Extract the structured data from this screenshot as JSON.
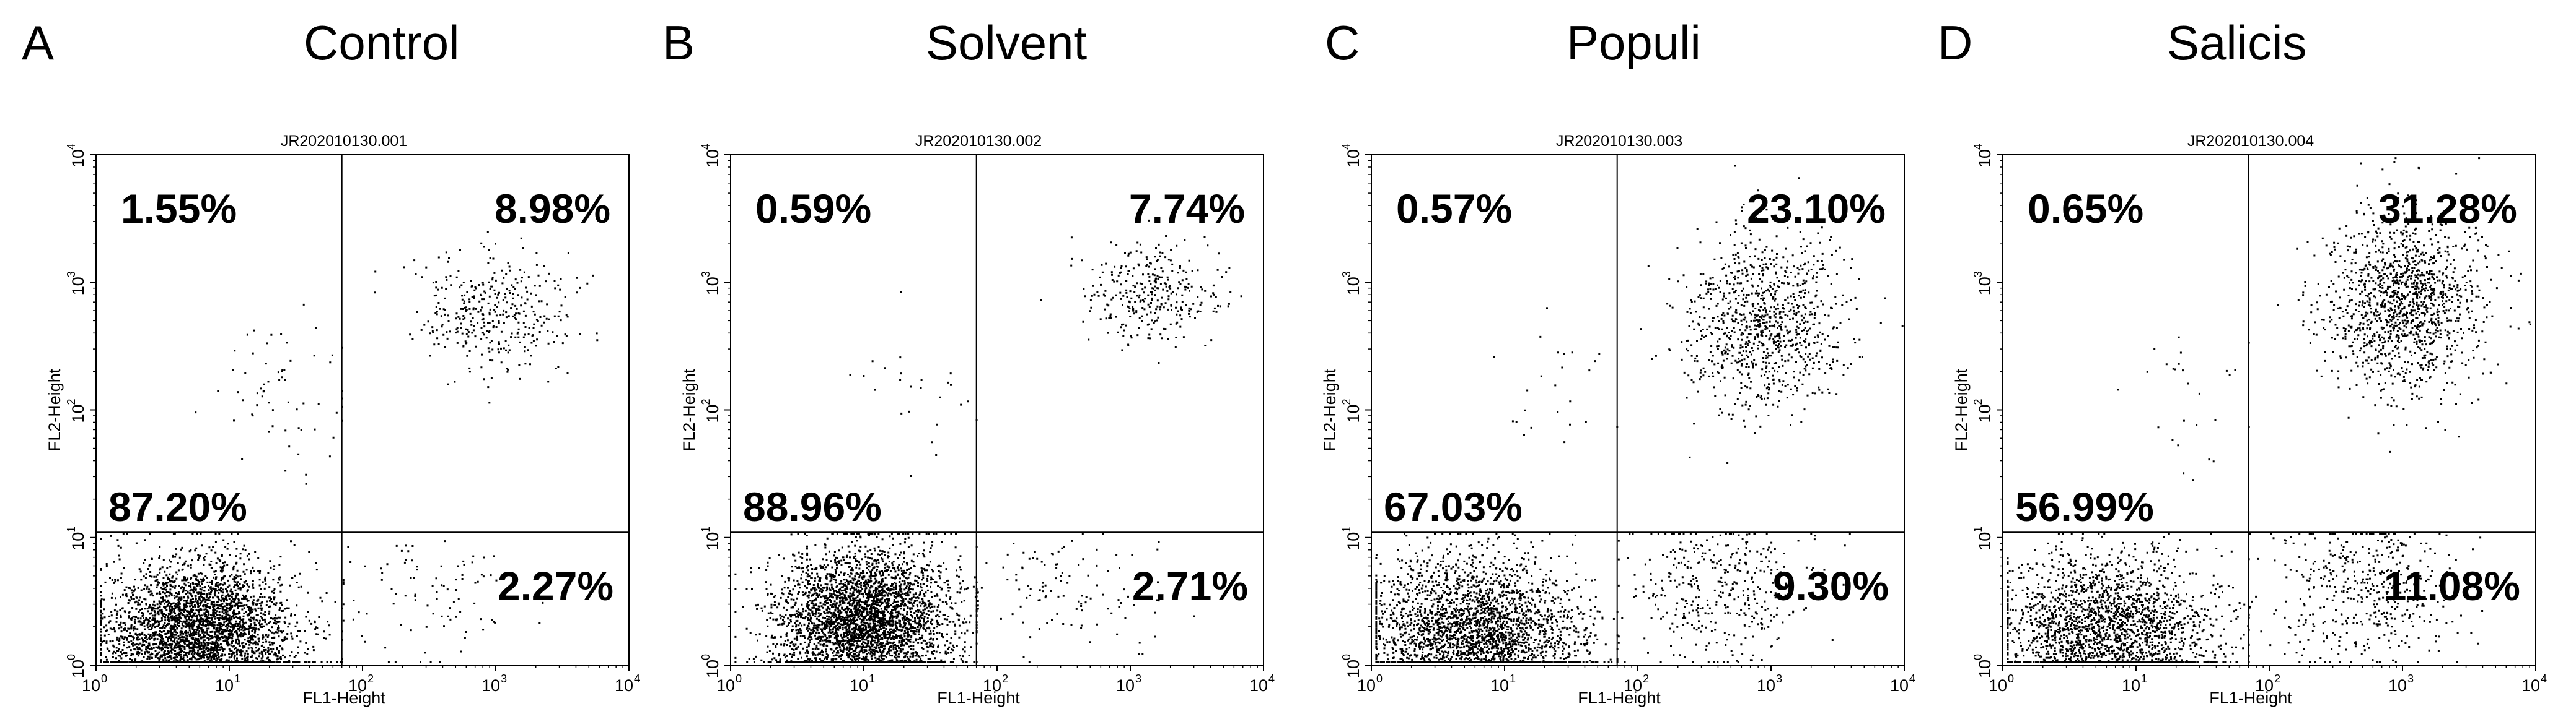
{
  "chart_data": [
    {
      "type": "scatter",
      "panel_letter": "A",
      "title": "Control",
      "sample_id": "JR202010130.001",
      "xlabel": "FL1-Height",
      "ylabel": "FL2-Height",
      "x_scale": "log",
      "y_scale": "log",
      "xlim": [
        1,
        10000
      ],
      "ylim": [
        1,
        10000
      ],
      "tick_base": "10",
      "tick_exps": [
        "0",
        "1",
        "2",
        "3",
        "4"
      ],
      "quadrant_gate": {
        "x": 70,
        "y": 11
      },
      "quadrants": {
        "upper_left": "1.55%",
        "upper_right": "8.98%",
        "lower_left": "87.20%",
        "lower_right": "2.27%"
      },
      "quadrant_fractions": {
        "upper_left": 0.0155,
        "upper_right": 0.0898,
        "lower_left": 0.872,
        "lower_right": 0.0227
      },
      "populations": [
        {
          "quadrant": "lower_left",
          "center": [
            6,
            1.8
          ],
          "spread": [
            0.35,
            0.28
          ]
        },
        {
          "quadrant": "upper_right",
          "center": [
            900,
            600
          ],
          "spread": [
            0.3,
            0.22
          ]
        },
        {
          "quadrant": "lower_right",
          "center": [
            300,
            4
          ],
          "spread": [
            0.35,
            0.25
          ]
        },
        {
          "quadrant": "upper_left",
          "center": [
            25,
            150
          ],
          "spread": [
            0.3,
            0.35
          ]
        }
      ]
    },
    {
      "type": "scatter",
      "panel_letter": "B",
      "title": "Solvent",
      "sample_id": "JR202010130.002",
      "xlabel": "FL1-Height",
      "ylabel": "FL2-Height",
      "x_scale": "log",
      "y_scale": "log",
      "xlim": [
        1,
        10000
      ],
      "ylim": [
        1,
        10000
      ],
      "tick_base": "10",
      "tick_exps": [
        "0",
        "1",
        "2",
        "3",
        "4"
      ],
      "quadrant_gate": {
        "x": 70,
        "y": 11
      },
      "quadrants": {
        "upper_left": "0.59%",
        "upper_right": "7.74%",
        "lower_left": "88.96%",
        "lower_right": "2.71%"
      },
      "quadrant_fractions": {
        "upper_left": 0.0059,
        "upper_right": 0.0774,
        "lower_left": 0.8896,
        "lower_right": 0.0271
      },
      "populations": [
        {
          "quadrant": "lower_left",
          "center": [
            10,
            2.2
          ],
          "spread": [
            0.33,
            0.28
          ]
        },
        {
          "quadrant": "upper_right",
          "center": [
            1400,
            800
          ],
          "spread": [
            0.25,
            0.2
          ]
        },
        {
          "quadrant": "lower_right",
          "center": [
            300,
            4
          ],
          "spread": [
            0.35,
            0.25
          ]
        },
        {
          "quadrant": "upper_left",
          "center": [
            25,
            150
          ],
          "spread": [
            0.3,
            0.35
          ]
        }
      ]
    },
    {
      "type": "scatter",
      "panel_letter": "C",
      "title": "Populi",
      "sample_id": "JR202010130.003",
      "xlabel": "FL1-Height",
      "ylabel": "FL2-Height",
      "x_scale": "log",
      "y_scale": "log",
      "xlim": [
        1,
        10000
      ],
      "ylim": [
        1,
        10000
      ],
      "tick_base": "10",
      "tick_exps": [
        "0",
        "1",
        "2",
        "3",
        "4"
      ],
      "quadrant_gate": {
        "x": 70,
        "y": 11
      },
      "quadrants": {
        "upper_left": "0.57%",
        "upper_right": "23.10%",
        "lower_left": "67.03%",
        "lower_right": "9.30%"
      },
      "quadrant_fractions": {
        "upper_left": 0.0057,
        "upper_right": 0.231,
        "lower_left": 0.6703,
        "lower_right": 0.093
      },
      "populations": [
        {
          "quadrant": "lower_left",
          "center": [
            6,
            1.8
          ],
          "spread": [
            0.4,
            0.3
          ]
        },
        {
          "quadrant": "upper_right",
          "center": [
            900,
            500
          ],
          "spread": [
            0.3,
            0.35
          ]
        },
        {
          "quadrant": "lower_right",
          "center": [
            400,
            4
          ],
          "spread": [
            0.35,
            0.3
          ]
        },
        {
          "quadrant": "upper_left",
          "center": [
            25,
            150
          ],
          "spread": [
            0.3,
            0.35
          ]
        }
      ]
    },
    {
      "type": "scatter",
      "panel_letter": "D",
      "title": "Salicis",
      "sample_id": "JR202010130.004",
      "xlabel": "FL1-Height",
      "ylabel": "FL2-Height",
      "x_scale": "log",
      "y_scale": "log",
      "xlim": [
        1,
        10000
      ],
      "ylim": [
        1,
        10000
      ],
      "tick_base": "10",
      "tick_exps": [
        "0",
        "1",
        "2",
        "3",
        "4"
      ],
      "quadrant_gate": {
        "x": 70,
        "y": 11
      },
      "quadrants": {
        "upper_left": "0.65%",
        "upper_right": "31.28%",
        "lower_left": "56.99%",
        "lower_right": "11.08%"
      },
      "quadrant_fractions": {
        "upper_left": 0.0065,
        "upper_right": 0.3128,
        "lower_left": 0.5699,
        "lower_right": 0.1108
      },
      "populations": [
        {
          "quadrant": "lower_left",
          "center": [
            6,
            1.8
          ],
          "spread": [
            0.4,
            0.3
          ]
        },
        {
          "quadrant": "upper_right",
          "center": [
            1000,
            700
          ],
          "spread": [
            0.3,
            0.35
          ]
        },
        {
          "quadrant": "lower_right",
          "center": [
            500,
            4
          ],
          "spread": [
            0.35,
            0.3
          ]
        },
        {
          "quadrant": "upper_left",
          "center": [
            25,
            150
          ],
          "spread": [
            0.3,
            0.35
          ]
        }
      ]
    }
  ]
}
